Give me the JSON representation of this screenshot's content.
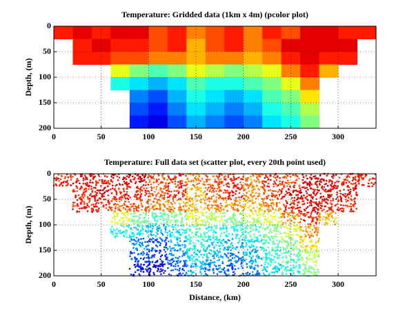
{
  "chart_data": [
    {
      "type": "pcolor",
      "title": "Temperature: Gridded data (1km x 4m) (pcolor plot)",
      "ylabel": "Depth, (m)",
      "colormap": "jet",
      "grid": true,
      "reverse_y": true,
      "xlim": [
        0,
        340
      ],
      "ylim": [
        0,
        200
      ],
      "xticks": [
        0,
        50,
        100,
        150,
        200,
        250,
        300
      ],
      "yticks": [
        0,
        50,
        100,
        150,
        200
      ],
      "x_bins": [
        0,
        20,
        40,
        60,
        80,
        100,
        120,
        140,
        160,
        180,
        200,
        220,
        240,
        260,
        280,
        300,
        320,
        340
      ],
      "depth_bins": [
        0,
        25,
        50,
        75,
        100,
        125,
        150,
        175,
        200
      ],
      "values": [
        [
          0.85,
          0.9,
          0.85,
          0.9,
          0.9,
          0.8,
          0.85,
          0.75,
          0.8,
          0.85,
          0.75,
          0.85,
          0.8,
          0.9,
          0.9,
          0.85,
          0.85
        ],
        [
          null,
          0.85,
          0.9,
          0.85,
          0.85,
          0.8,
          0.85,
          0.7,
          0.8,
          0.85,
          0.75,
          0.8,
          0.9,
          0.9,
          0.9,
          0.9,
          null
        ],
        [
          null,
          0.85,
          0.85,
          0.8,
          0.8,
          0.75,
          0.75,
          0.7,
          0.75,
          0.75,
          0.7,
          0.75,
          0.85,
          0.9,
          0.85,
          0.85,
          null
        ],
        [
          null,
          null,
          null,
          0.6,
          0.5,
          0.45,
          0.5,
          0.6,
          0.55,
          0.5,
          0.55,
          0.6,
          0.75,
          0.85,
          0.7,
          null,
          null
        ],
        [
          null,
          null,
          null,
          0.4,
          0.35,
          0.3,
          0.35,
          0.45,
          0.4,
          0.4,
          0.45,
          0.5,
          0.6,
          0.75,
          null,
          null,
          null
        ],
        [
          null,
          null,
          null,
          null,
          0.25,
          0.2,
          0.3,
          0.4,
          0.35,
          0.3,
          0.35,
          0.45,
          0.5,
          0.65,
          null,
          null,
          null
        ],
        [
          null,
          null,
          null,
          null,
          0.2,
          0.15,
          0.25,
          0.35,
          0.3,
          0.25,
          0.3,
          0.4,
          0.45,
          0.55,
          null,
          null,
          null
        ],
        [
          null,
          null,
          null,
          null,
          0.15,
          0.1,
          0.2,
          0.3,
          0.25,
          0.2,
          0.25,
          0.35,
          0.4,
          0.5,
          null,
          null,
          null
        ]
      ]
    },
    {
      "type": "scatter",
      "title": "Temperature: Full data set (scatter plot, every 20th point used)",
      "ylabel": "Depth, (m)",
      "xlabel": "Distance, (km)",
      "colormap": "jet",
      "grid": true,
      "reverse_y": true,
      "xlim": [
        0,
        340
      ],
      "ylim": [
        0,
        200
      ],
      "xticks": [
        0,
        50,
        100,
        150,
        200,
        250,
        300
      ],
      "yticks": [
        0,
        50,
        100,
        150,
        200
      ],
      "x_bins": [
        0,
        20,
        40,
        60,
        80,
        100,
        120,
        140,
        160,
        180,
        200,
        220,
        240,
        260,
        280,
        300,
        320,
        340
      ],
      "depth_bins": [
        0,
        25,
        50,
        75,
        100,
        125,
        150,
        175,
        200
      ],
      "values": [
        [
          0.85,
          0.9,
          0.85,
          0.9,
          0.9,
          0.8,
          0.85,
          0.75,
          0.8,
          0.85,
          0.75,
          0.85,
          0.8,
          0.9,
          0.9,
          0.85,
          0.85
        ],
        [
          null,
          0.85,
          0.9,
          0.85,
          0.85,
          0.8,
          0.85,
          0.7,
          0.8,
          0.85,
          0.75,
          0.8,
          0.9,
          0.9,
          0.9,
          0.9,
          null
        ],
        [
          null,
          0.85,
          0.85,
          0.8,
          0.8,
          0.75,
          0.75,
          0.7,
          0.75,
          0.75,
          0.7,
          0.75,
          0.85,
          0.9,
          0.85,
          0.85,
          null
        ],
        [
          null,
          null,
          null,
          0.6,
          0.5,
          0.45,
          0.5,
          0.6,
          0.55,
          0.5,
          0.55,
          0.6,
          0.75,
          0.85,
          0.7,
          null,
          null
        ],
        [
          null,
          null,
          null,
          0.4,
          0.35,
          0.3,
          0.35,
          0.45,
          0.4,
          0.4,
          0.45,
          0.5,
          0.6,
          0.75,
          null,
          null,
          null
        ],
        [
          null,
          null,
          null,
          null,
          0.25,
          0.2,
          0.3,
          0.4,
          0.35,
          0.3,
          0.35,
          0.45,
          0.5,
          0.65,
          null,
          null,
          null
        ],
        [
          null,
          null,
          null,
          null,
          0.2,
          0.15,
          0.25,
          0.35,
          0.3,
          0.25,
          0.3,
          0.4,
          0.45,
          0.55,
          null,
          null,
          null
        ],
        [
          null,
          null,
          null,
          null,
          0.15,
          0.1,
          0.2,
          0.3,
          0.25,
          0.2,
          0.25,
          0.35,
          0.4,
          0.5,
          null,
          null,
          null
        ]
      ]
    }
  ]
}
